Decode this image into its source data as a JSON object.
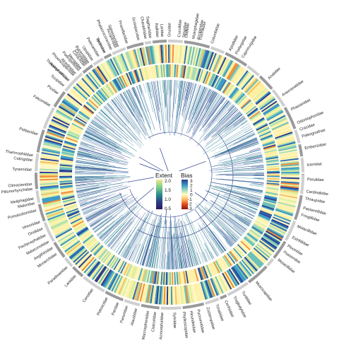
{
  "legend": {
    "extent": {
      "title": "Extent",
      "ticks": [
        "2.0",
        "1.5",
        "1.0",
        "0.5"
      ],
      "colors": [
        "#f2e68a",
        "#7fcf8a",
        "#2a8f8a",
        "#2c3d86",
        "#2a1b5e"
      ]
    },
    "bias": {
      "title": "Bias",
      "ticks": [
        "3",
        "2",
        "1",
        "0",
        "-1",
        "-2",
        "-3"
      ],
      "colors": [
        "#2e3a8c",
        "#3690c0",
        "#8fd0c4",
        "#ffffbf",
        "#fdb863",
        "#e34a1e",
        "#8b1a10"
      ]
    }
  },
  "heat_colors": [
    "#fff7c2",
    "#fff2ae",
    "#ffefa0",
    "#d9f0a3",
    "#a8dcb5",
    "#69c0b8",
    "#3b9bc6",
    "#2c6fb3",
    "#2b3f92",
    "#f6c065",
    "#ef8d3a"
  ],
  "tree_colors": [
    "#1a2e7a",
    "#26418f",
    "#2c5a9a",
    "#2f74a0",
    "#3a8e9e",
    "#4aa59a"
  ],
  "families": [
    {
      "name": "Columbidae",
      "angle": -72
    },
    {
      "name": "Accipitridae",
      "angle": -78
    },
    {
      "name": "Strigidae",
      "angle": -84
    },
    {
      "name": "Laridae",
      "angle": -93
    },
    {
      "name": "Sagittariidae",
      "angle": -98
    },
    {
      "name": "Accipitridae",
      "angle": -113
    },
    {
      "name": "Tytonidae",
      "angle": -118
    },
    {
      "name": "Upupidae",
      "angle": -124
    },
    {
      "name": "Bucerotidae",
      "angle": -126
    },
    {
      "name": "Coraciidae",
      "angle": -128
    },
    {
      "name": "Meropidae",
      "angle": -130
    },
    {
      "name": "Alcedinidae",
      "angle": -133
    },
    {
      "name": "Ramphastidae",
      "angle": -137
    },
    {
      "name": "Picidae",
      "angle": -144
    },
    {
      "name": "Falconidae",
      "angle": -150
    },
    {
      "name": "Psittacidae",
      "angle": -163
    },
    {
      "name": "Thamnophilidae",
      "angle": -172
    },
    {
      "name": "Cotingidae",
      "angle": -174
    },
    {
      "name": "Tyrannidae",
      "angle": -178
    },
    {
      "name": "Climacteridae",
      "angle": 176
    },
    {
      "name": "Ptilonorhynchidae",
      "angle": 174
    },
    {
      "name": "Meliphagidae",
      "angle": 170
    },
    {
      "name": "Maluridae",
      "angle": 168
    },
    {
      "name": "Pomatostomidae",
      "angle": 165
    },
    {
      "name": "Vireonidae",
      "angle": 160
    },
    {
      "name": "Oriolidae",
      "angle": 157
    },
    {
      "name": "Pachycephalidae",
      "angle": 154
    },
    {
      "name": "Malaconotidae",
      "angle": 151
    },
    {
      "name": "Aegithinidae",
      "angle": 148
    },
    {
      "name": "Monarchidae",
      "angle": 145
    },
    {
      "name": "Paradisaeidae",
      "angle": 138
    },
    {
      "name": "Laniidae",
      "angle": 133
    },
    {
      "name": "Corvidae",
      "angle": 124
    },
    {
      "name": "Petroicidae",
      "angle": 117
    },
    {
      "name": "Paridae",
      "angle": 112
    },
    {
      "name": "Panuridae",
      "angle": 108
    },
    {
      "name": "Alaudidae",
      "angle": 104
    },
    {
      "name": "Macrosphenidae",
      "angle": 99
    },
    {
      "name": "Cisticolidae",
      "angle": 96
    },
    {
      "name": "Acrocephalidae",
      "angle": 93
    },
    {
      "name": "Sylviidae",
      "angle": 88
    },
    {
      "name": "Phylloscopidae",
      "angle": 84
    },
    {
      "name": "Hirundinidae",
      "angle": 81
    },
    {
      "name": "Pycnonotidae",
      "angle": 78
    },
    {
      "name": "Zosteropidae",
      "angle": 74
    },
    {
      "name": "Timaliidae",
      "angle": 70
    },
    {
      "name": "Certhiidae",
      "angle": 66
    },
    {
      "name": "Troglodytidae",
      "angle": 62
    },
    {
      "name": "Turdidae",
      "angle": 58
    },
    {
      "name": "Muscicapidae",
      "angle": 51
    },
    {
      "name": "Motacillidae",
      "angle": 38
    },
    {
      "name": "Passeridae",
      "angle": 34
    },
    {
      "name": "Ploceidae",
      "angle": 31
    },
    {
      "name": "Estrildidae",
      "angle": 27
    },
    {
      "name": "Motacillidae",
      "angle": 22
    },
    {
      "name": "Fringillidae",
      "angle": 17
    },
    {
      "name": "Passerellidae",
      "angle": 14
    },
    {
      "name": "Thraupidae",
      "angle": 10
    },
    {
      "name": "Cardinalidae",
      "angle": 7
    },
    {
      "name": "Parulidae",
      "angle": 2
    },
    {
      "name": "Icteridae",
      "angle": -4
    },
    {
      "name": "Emberizidae",
      "angle": -11
    },
    {
      "name": "Paleognathae",
      "angle": -16
    },
    {
      "name": "Cracidae",
      "angle": -19
    },
    {
      "name": "Odontophoridae",
      "angle": -22
    },
    {
      "name": "Phasianidae",
      "angle": -28
    },
    {
      "name": "Anseranatidae",
      "angle": -35
    },
    {
      "name": "Anatidae",
      "angle": -44
    },
    {
      "name": "Caprimulgidae",
      "angle": -58
    },
    {
      "name": "Podargidae",
      "angle": -61
    },
    {
      "name": "Apodidae",
      "angle": -64
    },
    {
      "name": "Trochilidae",
      "angle": -77
    },
    {
      "name": "Musophagidae",
      "angle": -80
    },
    {
      "name": "Otididae",
      "angle": -83
    },
    {
      "name": "Cuculidae",
      "angle": -86
    },
    {
      "name": "Gruidae",
      "angle": -90
    },
    {
      "name": "Rallidae",
      "angle": -95
    },
    {
      "name": "Charadriidae",
      "angle": -100
    },
    {
      "name": "Scolopacidae",
      "angle": -103
    },
    {
      "name": "Procellariidae",
      "angle": -108
    },
    {
      "name": "Spheniscidae",
      "angle": -112
    },
    {
      "name": "Phalacrocoracidae",
      "angle": -115
    },
    {
      "name": "Ardeidae",
      "angle": -118
    },
    {
      "name": "Pelecanidae",
      "angle": -121
    },
    {
      "name": "Ciconiidae",
      "angle": -127
    },
    {
      "name": "Podicipedidae",
      "angle": -131
    },
    {
      "name": "Phoenicopteridae",
      "angle": -134
    },
    {
      "name": "Threskiornithidae",
      "angle": -137
    },
    {
      "name": "Scopidae",
      "angle": -140
    }
  ]
}
